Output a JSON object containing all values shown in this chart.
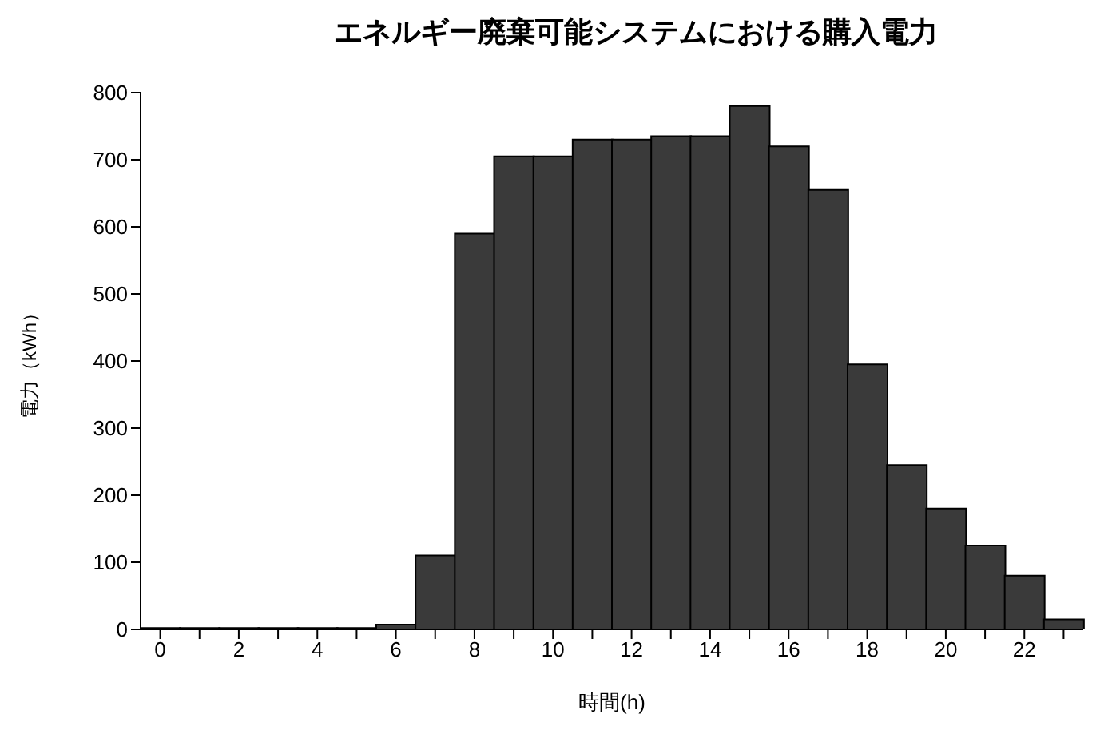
{
  "chart_data": {
    "type": "bar",
    "title": "エネルギー廃棄可能システムにおける購入電力",
    "xlabel": "時間(h)",
    "ylabel": "電力（kWh）",
    "categories": [
      "0",
      null,
      "2",
      null,
      "4",
      null,
      "6",
      null,
      "8",
      null,
      "10",
      null,
      "12",
      null,
      "14",
      null,
      "16",
      null,
      "18",
      null,
      "20",
      null,
      "22",
      null
    ],
    "values": [
      2,
      2,
      2,
      2,
      2,
      2,
      7,
      110,
      590,
      705,
      705,
      730,
      730,
      735,
      735,
      780,
      720,
      655,
      395,
      245,
      180,
      125,
      80,
      15
    ],
    "color": "#3a3a3a",
    "ylim": [
      0,
      800
    ],
    "yticks": [
      0,
      100,
      200,
      300,
      400,
      500,
      600,
      700,
      800
    ],
    "grid": false
  }
}
